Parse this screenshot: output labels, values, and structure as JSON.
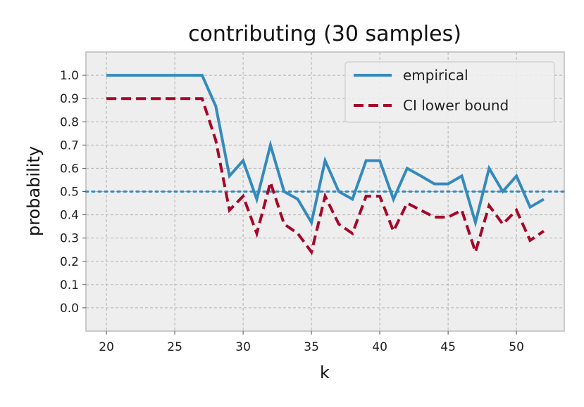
{
  "chart_data": {
    "type": "line",
    "title": "contributing (30 samples)",
    "xlabel": "k",
    "ylabel": "probability",
    "xlim": [
      18.5,
      53.5
    ],
    "ylim": [
      -0.1,
      1.1
    ],
    "xticks": [
      20,
      25,
      30,
      35,
      40,
      45,
      50
    ],
    "yticks": [
      0.0,
      0.1,
      0.2,
      0.3,
      0.4,
      0.5,
      0.6,
      0.7,
      0.8,
      0.9,
      1.0
    ],
    "ytick_labels": [
      "0.0",
      "0.1",
      "0.2",
      "0.3",
      "0.4",
      "0.5",
      "0.6",
      "0.7",
      "0.8",
      "0.9",
      "1.0"
    ],
    "xtick_labels": [
      "20",
      "25",
      "30",
      "35",
      "40",
      "45",
      "50"
    ],
    "grid": true,
    "legend_position": "top-right",
    "x": [
      20,
      21,
      22,
      23,
      24,
      25,
      26,
      27,
      28,
      29,
      30,
      31,
      32,
      33,
      34,
      35,
      36,
      37,
      38,
      39,
      40,
      41,
      42,
      43,
      44,
      45,
      46,
      47,
      48,
      49,
      50,
      51,
      52
    ],
    "series": [
      {
        "name": "empirical",
        "color": "#348abd",
        "style": "solid",
        "values": [
          1.0,
          1.0,
          1.0,
          1.0,
          1.0,
          1.0,
          1.0,
          1.0,
          0.867,
          0.567,
          0.633,
          0.467,
          0.7,
          0.5,
          0.467,
          0.367,
          0.633,
          0.5,
          0.467,
          0.633,
          0.633,
          0.467,
          0.6,
          0.567,
          0.533,
          0.533,
          0.567,
          0.367,
          0.6,
          0.5,
          0.567,
          0.433,
          0.467
        ]
      },
      {
        "name": "CI lower bound",
        "color": "#a60628",
        "style": "dashed",
        "values": [
          0.9,
          0.9,
          0.9,
          0.9,
          0.9,
          0.9,
          0.9,
          0.9,
          0.72,
          0.42,
          0.48,
          0.32,
          0.54,
          0.36,
          0.32,
          0.24,
          0.48,
          0.36,
          0.32,
          0.48,
          0.48,
          0.33,
          0.45,
          0.42,
          0.39,
          0.39,
          0.42,
          0.24,
          0.44,
          0.36,
          0.42,
          0.29,
          0.33
        ]
      }
    ],
    "reference_line": {
      "y": 0.5,
      "color": "#348abd",
      "style": "dotted"
    },
    "colors": {
      "plot_background": "#eeeeee",
      "grid": "#b2b2b2",
      "frame": "#bcbcbc"
    }
  }
}
